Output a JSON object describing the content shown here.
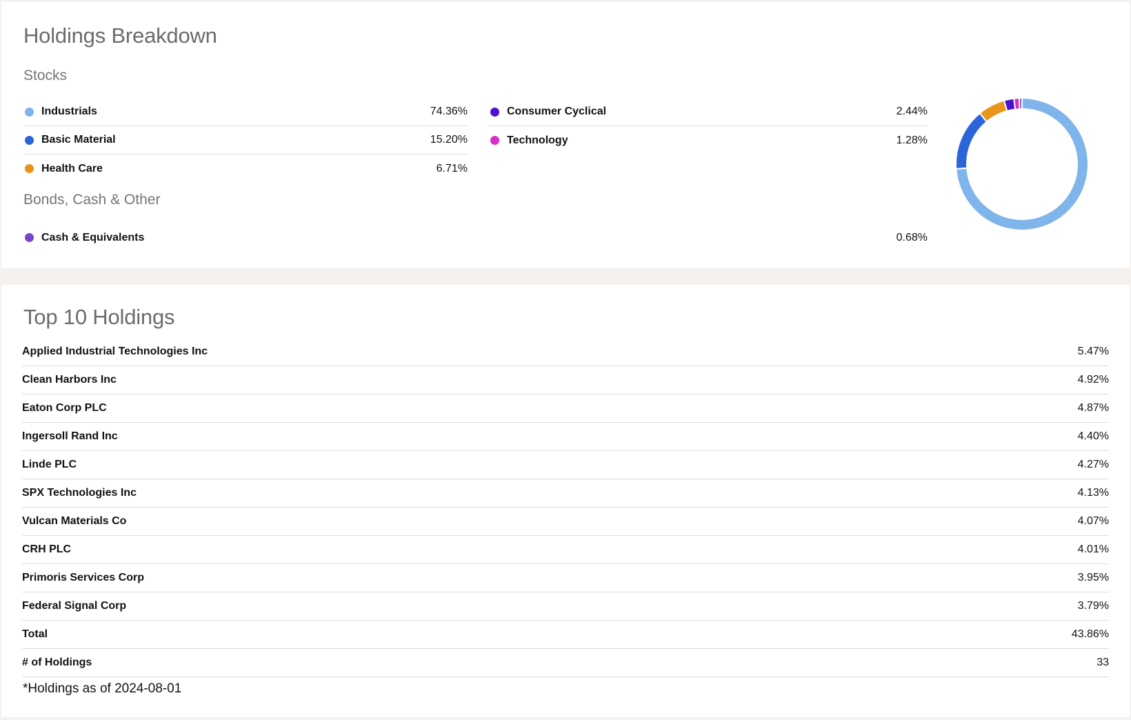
{
  "breakdown": {
    "title": "Holdings Breakdown",
    "stocks_label": "Stocks",
    "bonds_label": "Bonds, Cash & Other",
    "stocks_left": [
      {
        "label": "Industrials",
        "value": "74.36%",
        "color": "#7fb5ea"
      },
      {
        "label": "Basic Material",
        "value": "15.20%",
        "color": "#2a66d9"
      },
      {
        "label": "Health Care",
        "value": "6.71%",
        "color": "#e8951a"
      }
    ],
    "stocks_right": [
      {
        "label": "Consumer Cyclical",
        "value": "2.44%",
        "color": "#4a12cf"
      },
      {
        "label": "Technology",
        "value": "1.28%",
        "color": "#d82fc7"
      }
    ],
    "bonds": [
      {
        "label": "Cash & Equivalents",
        "value": "0.68%",
        "color": "#7547c9"
      }
    ]
  },
  "chart_data": {
    "type": "pie",
    "style": "donut",
    "categories": [
      "Industrials",
      "Basic Material",
      "Health Care",
      "Consumer Cyclical",
      "Technology",
      "Cash & Equivalents"
    ],
    "values": [
      74.36,
      15.2,
      6.71,
      2.44,
      1.28,
      0.68
    ],
    "colors": [
      "#7fb5ea",
      "#2a66d9",
      "#e8951a",
      "#4a12cf",
      "#d82fc7",
      "#7547c9"
    ]
  },
  "holdings": {
    "title": "Top 10 Holdings",
    "rows": [
      {
        "name": "Applied Industrial Technologies Inc",
        "value": "5.47%"
      },
      {
        "name": "Clean Harbors Inc",
        "value": "4.92%"
      },
      {
        "name": "Eaton Corp PLC",
        "value": "4.87%"
      },
      {
        "name": "Ingersoll Rand Inc",
        "value": "4.40%"
      },
      {
        "name": "Linde PLC",
        "value": "4.27%"
      },
      {
        "name": "SPX Technologies Inc",
        "value": "4.13%"
      },
      {
        "name": "Vulcan Materials Co",
        "value": "4.07%"
      },
      {
        "name": "CRH PLC",
        "value": "4.01%"
      },
      {
        "name": "Primoris Services Corp",
        "value": "3.95%"
      },
      {
        "name": "Federal Signal Corp",
        "value": "3.79%"
      },
      {
        "name": "Total",
        "value": "43.86%"
      },
      {
        "name": "# of Holdings",
        "value": "33"
      }
    ],
    "footnote": "*Holdings as of 2024-08-01"
  }
}
